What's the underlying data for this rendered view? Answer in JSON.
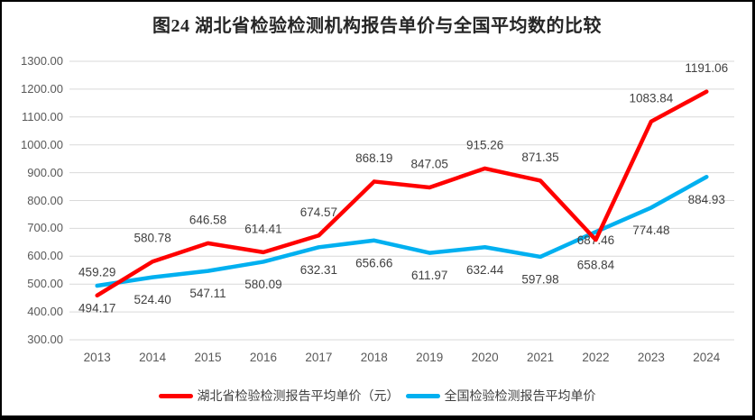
{
  "chart_data": {
    "type": "line",
    "title": "图24 湖北省检验检测机构报告单价与全国平均数的比较",
    "categories": [
      "2013",
      "2014",
      "2015",
      "2016",
      "2017",
      "2018",
      "2019",
      "2020",
      "2021",
      "2022",
      "2023",
      "2024"
    ],
    "series": [
      {
        "name": "湖北省检验检测报告平均单价（元）",
        "color": "#FF0000",
        "values": [
          459.29,
          580.78,
          646.58,
          614.41,
          674.57,
          868.19,
          847.05,
          915.26,
          871.35,
          658.84,
          1083.84,
          1191.06
        ],
        "label_offset": -26,
        "label_offset_overrides": {
          "9": 28
        }
      },
      {
        "name": "全国检验检测报告平均单价",
        "color": "#00B0F0",
        "values": [
          494.17,
          524.4,
          547.11,
          580.09,
          632.31,
          656.66,
          611.97,
          632.44,
          597.98,
          687.46,
          774.48,
          884.93
        ],
        "label_offset": 25,
        "label_offset_overrides": {
          "9": 9
        }
      }
    ],
    "ylim": [
      300,
      1300
    ],
    "ytick_step": 100,
    "ytick_decimals": 2,
    "grid": true,
    "legend_position": "bottom",
    "gridline_color": "#D9D9D9",
    "axis_text_color": "#595959",
    "datalabel_color": "#404040"
  }
}
